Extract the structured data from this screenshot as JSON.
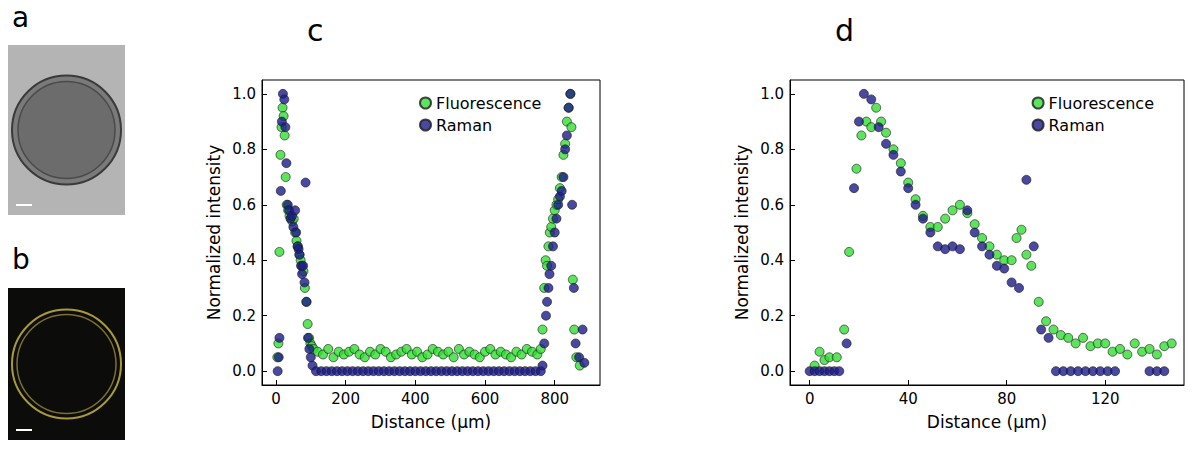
{
  "images": [
    {
      "label": "a"
    },
    {
      "label": "b"
    }
  ],
  "chart_data": [
    {
      "type": "scatter",
      "title": "c",
      "x_label": "Distance (µm)",
      "y_label": "Normalized intensity",
      "xlim": [
        -40,
        930
      ],
      "xticks": [
        0,
        200,
        400,
        600,
        800
      ],
      "ylim": [
        -0.05,
        1.05
      ],
      "yticks": [
        {
          "value": 0,
          "label": "0.0"
        },
        0.2,
        0.4,
        0.6,
        0.8,
        {
          "value": 1,
          "label": "1.0"
        }
      ],
      "grid": false,
      "legend": "upper center",
      "series": [
        {
          "name": "Fluorescence",
          "color": "#33dd33",
          "marker": "circle",
          "x": [
            4,
            7,
            10,
            13,
            16,
            19,
            22,
            25,
            28,
            31,
            35,
            39,
            43,
            47,
            51,
            55,
            59,
            63,
            67,
            71,
            75,
            79,
            83,
            87,
            91,
            95,
            99,
            103,
            108,
            120,
            135,
            150,
            165,
            180,
            195,
            210,
            225,
            240,
            255,
            270,
            285,
            300,
            315,
            330,
            345,
            360,
            375,
            390,
            405,
            420,
            435,
            450,
            465,
            480,
            495,
            510,
            525,
            540,
            555,
            570,
            585,
            600,
            615,
            630,
            645,
            660,
            675,
            690,
            705,
            720,
            735,
            750,
            760,
            765,
            770,
            774,
            778,
            782,
            786,
            790,
            795,
            800,
            805,
            810,
            815,
            820,
            825,
            830,
            835,
            840,
            845,
            848,
            852,
            856,
            862,
            872
          ],
          "values": [
            0.05,
            0.1,
            0.43,
            0.78,
            0.88,
            0.95,
            0.92,
            0.85,
            0.7,
            0.6,
            0.58,
            0.56,
            0.55,
            0.54,
            0.55,
            0.5,
            0.47,
            0.45,
            0.42,
            0.4,
            0.38,
            0.36,
            0.3,
            0.25,
            0.17,
            0.12,
            0.1,
            0.09,
            0.08,
            0.07,
            0.06,
            0.08,
            0.05,
            0.07,
            0.06,
            0.07,
            0.08,
            0.06,
            0.05,
            0.07,
            0.06,
            0.08,
            0.07,
            0.05,
            0.06,
            0.07,
            0.08,
            0.06,
            0.07,
            0.05,
            0.06,
            0.08,
            0.07,
            0.06,
            0.07,
            0.05,
            0.08,
            0.06,
            0.07,
            0.06,
            0.05,
            0.07,
            0.08,
            0.06,
            0.07,
            0.06,
            0.05,
            0.07,
            0.06,
            0.08,
            0.07,
            0.06,
            0.08,
            0.15,
            0.3,
            0.4,
            0.38,
            0.45,
            0.5,
            0.52,
            0.55,
            0.58,
            0.6,
            0.62,
            0.66,
            0.7,
            0.78,
            0.82,
            0.9,
            0.95,
            1.0,
            0.88,
            0.33,
            0.15,
            0.05,
            0.02
          ]
        },
        {
          "name": "Raman",
          "color": "#1c1c8a",
          "marker": "circle",
          "x": [
            5,
            8,
            10,
            14,
            17,
            20,
            24,
            27,
            30,
            34,
            38,
            42,
            46,
            50,
            55,
            58,
            62,
            65,
            68,
            72,
            75,
            78,
            82,
            85,
            88,
            92,
            96,
            100,
            105,
            115,
            130,
            145,
            160,
            175,
            190,
            205,
            220,
            235,
            250,
            265,
            280,
            295,
            310,
            325,
            340,
            355,
            370,
            385,
            400,
            415,
            430,
            445,
            460,
            475,
            490,
            505,
            520,
            535,
            550,
            565,
            580,
            595,
            610,
            625,
            640,
            655,
            670,
            685,
            700,
            715,
            730,
            745,
            760,
            765,
            770,
            775,
            778,
            782,
            785,
            790,
            795,
            800,
            805,
            810,
            815,
            820,
            825,
            830,
            835,
            840,
            845,
            850,
            855,
            860,
            870,
            880,
            885
          ],
          "values": [
            0,
            0.05,
            0.12,
            0.65,
            0.9,
            1.0,
            0.98,
            0.88,
            0.75,
            0.6,
            0.58,
            0.55,
            0.56,
            0.52,
            0.58,
            0.5,
            0.45,
            0.44,
            0.42,
            0.38,
            0.35,
            0.38,
            0.32,
            0.68,
            0.25,
            0.12,
            0.08,
            0.05,
            0.02,
            0,
            0,
            0,
            0,
            0,
            0,
            0,
            0,
            0,
            0,
            0,
            0,
            0,
            0,
            0,
            0,
            0,
            0,
            0,
            0,
            0,
            0,
            0,
            0,
            0,
            0,
            0,
            0,
            0,
            0,
            0,
            0,
            0,
            0,
            0,
            0,
            0,
            0,
            0,
            0,
            0,
            0,
            0,
            0,
            0.02,
            0.1,
            0.2,
            0.25,
            0.3,
            0.35,
            0.38,
            0.45,
            0.5,
            0.55,
            0.6,
            0.63,
            0.65,
            0.7,
            0.8,
            0.85,
            0.95,
            1.0,
            0.6,
            0.3,
            0.1,
            0.05,
            0.15,
            0.03
          ]
        }
      ]
    },
    {
      "type": "scatter",
      "title": "d",
      "x_label": "Distance (µm)",
      "y_label": "Normalized intensity",
      "xlim": [
        -8,
        152
      ],
      "xticks": [
        0,
        40,
        80,
        120
      ],
      "ylim": [
        -0.05,
        1.05
      ],
      "yticks": [
        {
          "value": 0,
          "label": "0.0"
        },
        0.2,
        0.4,
        0.6,
        0.8,
        {
          "value": 1,
          "label": "1.0"
        }
      ],
      "grid": false,
      "legend": "upper right",
      "series": [
        {
          "name": "Fluorescence",
          "color": "#33dd33",
          "marker": "circle",
          "x": [
            2,
            4,
            6,
            8,
            11,
            14,
            16,
            19,
            21,
            23,
            25,
            27,
            29,
            31,
            34,
            37,
            40,
            43,
            46,
            49,
            52,
            55,
            58,
            61,
            64,
            67,
            70,
            73,
            76,
            79,
            82,
            84,
            86,
            88,
            90,
            93,
            96,
            99,
            102,
            105,
            108,
            111,
            114,
            117,
            120,
            123,
            126,
            129,
            132,
            135,
            138,
            141,
            144,
            147
          ],
          "values": [
            0.02,
            0.07,
            0.04,
            0.05,
            0.05,
            0.15,
            0.43,
            0.73,
            0.85,
            0.9,
            0.88,
            0.95,
            0.9,
            0.86,
            0.8,
            0.75,
            0.68,
            0.62,
            0.56,
            0.52,
            0.52,
            0.55,
            0.58,
            0.6,
            0.57,
            0.53,
            0.48,
            0.45,
            0.42,
            0.4,
            0.4,
            0.48,
            0.51,
            0.42,
            0.38,
            0.25,
            0.18,
            0.15,
            0.13,
            0.12,
            0.1,
            0.12,
            0.09,
            0.1,
            0.1,
            0.07,
            0.08,
            0.06,
            0.1,
            0.07,
            0.08,
            0.06,
            0.09,
            0.1
          ]
        },
        {
          "name": "Raman",
          "color": "#1c1c8a",
          "marker": "circle",
          "x": [
            0,
            2,
            4,
            6,
            8,
            10,
            12,
            15,
            18,
            20,
            22,
            25,
            28,
            31,
            34,
            37,
            40,
            43,
            46,
            49,
            52,
            55,
            58,
            61,
            64,
            67,
            70,
            73,
            76,
            79,
            82,
            85,
            88,
            91,
            94,
            97,
            100,
            103,
            106,
            109,
            112,
            115,
            118,
            121,
            124,
            138,
            141,
            144
          ],
          "values": [
            0,
            0,
            0,
            0,
            0,
            0,
            0,
            0.1,
            0.66,
            0.9,
            1.0,
            0.98,
            0.88,
            0.82,
            0.78,
            0.72,
            0.66,
            0.6,
            0.55,
            0.5,
            0.45,
            0.44,
            0.45,
            0.44,
            0.58,
            0.5,
            0.45,
            0.42,
            0.38,
            0.37,
            0.32,
            0.3,
            0.69,
            0.45,
            0.15,
            0.12,
            0,
            0,
            0,
            0,
            0,
            0,
            0,
            0,
            0,
            0,
            0,
            0
          ]
        }
      ]
    }
  ]
}
